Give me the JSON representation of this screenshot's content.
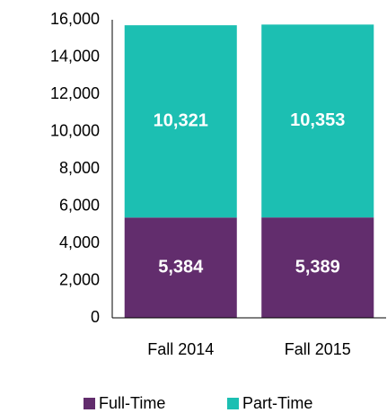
{
  "chart_data": {
    "type": "stacked_bar",
    "categories": [
      "Fall 2014",
      "Fall 2015"
    ],
    "series": [
      {
        "name": "Full-Time",
        "color": "#622d6d",
        "values": [
          5384,
          5389
        ],
        "value_labels": [
          "5,384",
          "5,389"
        ]
      },
      {
        "name": "Part-Time",
        "color": "#1cbfb2",
        "values": [
          10321,
          10353
        ],
        "value_labels": [
          "10,321",
          "10,353"
        ]
      }
    ],
    "ylim": [
      0,
      16000
    ],
    "yticks": [
      0,
      {
        "value": 2000,
        "label": "2,000"
      },
      {
        "value": 4000,
        "label": "4,000"
      },
      {
        "value": 6000,
        "label": "6,000"
      },
      {
        "value": 8000,
        "label": "8,000"
      },
      {
        "value": 10000,
        "label": "10,000"
      },
      {
        "value": 12000,
        "label": "12,000"
      },
      {
        "value": 14000,
        "label": "14,000"
      },
      {
        "value": 16000,
        "label": "16,000"
      }
    ],
    "grid": false,
    "legend": "bottom"
  }
}
